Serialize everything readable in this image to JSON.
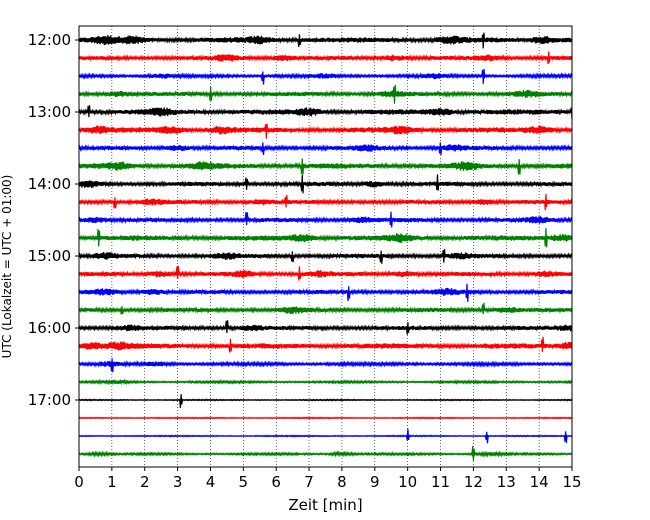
{
  "chart_data": {
    "type": "line",
    "xlabel": "Zeit  [min]",
    "ylabel": "UTC (Lokalzeit = UTC + 01:00)",
    "xlim": [
      0,
      15
    ],
    "x_ticks": [
      0,
      1,
      2,
      3,
      4,
      5,
      6,
      7,
      8,
      9,
      10,
      11,
      12,
      13,
      14,
      15
    ],
    "x_tick_labels": [
      "0",
      "1",
      "2",
      "3",
      "4",
      "5",
      "6",
      "7",
      "8",
      "9",
      "10",
      "11",
      "12",
      "13",
      "14",
      "15"
    ],
    "y_ticks": [
      {
        "label": "12:00",
        "row": 0
      },
      {
        "label": "13:00",
        "row": 4
      },
      {
        "label": "14:00",
        "row": 8
      },
      {
        "label": "15:00",
        "row": 12
      },
      {
        "label": "16:00",
        "row": 16
      },
      {
        "label": "17:00",
        "row": 20
      }
    ],
    "vertical_grid": true,
    "grid_style": "dotted",
    "trace_colors": [
      "#000000",
      "#ff0000",
      "#0000ff",
      "#008000"
    ],
    "traces": [
      {
        "start": "12:00",
        "amplitude": 5,
        "spikes": [
          6.7,
          12.3
        ],
        "bursts": [
          0.8,
          1.6,
          5.5,
          11.3,
          14.1
        ]
      },
      {
        "start": "12:15",
        "amplitude": 4,
        "spikes": [
          14.3
        ],
        "bursts": [
          4.5,
          6.2,
          9.6,
          12.4
        ]
      },
      {
        "start": "12:30",
        "amplitude": 3,
        "spikes": [
          5.6,
          12.3
        ],
        "bursts": [
          2.5,
          7.5,
          10.8
        ]
      },
      {
        "start": "12:45",
        "amplitude": 4,
        "spikes": [
          4.0,
          9.6
        ],
        "bursts": [
          1.2,
          9.5,
          13.6
        ]
      },
      {
        "start": "13:00",
        "amplitude": 5,
        "spikes": [
          0.3,
          15.0
        ],
        "bursts": [
          2.5,
          7.0,
          11.0
        ]
      },
      {
        "start": "13:15",
        "amplitude": 5,
        "spikes": [
          5.7
        ],
        "bursts": [
          0.6,
          2.8,
          4.3,
          9.8,
          14.0
        ]
      },
      {
        "start": "13:30",
        "amplitude": 4,
        "spikes": [
          5.6,
          11.0
        ],
        "bursts": [
          3.0,
          8.8,
          11.4
        ]
      },
      {
        "start": "13:45",
        "amplitude": 5,
        "spikes": [
          6.8,
          13.4
        ],
        "bursts": [
          1.2,
          3.8,
          11.8
        ]
      },
      {
        "start": "14:00",
        "amplitude": 4,
        "spikes": [
          5.1,
          6.8,
          10.9
        ],
        "bursts": [
          0.3,
          9.0
        ]
      },
      {
        "start": "14:15",
        "amplitude": 4,
        "spikes": [
          1.1,
          6.3,
          14.2
        ],
        "bursts": [
          2.2,
          5.5,
          12.3
        ]
      },
      {
        "start": "14:30",
        "amplitude": 4,
        "spikes": [
          5.1,
          9.5
        ],
        "bursts": [
          0.5,
          8.6,
          14.0
        ]
      },
      {
        "start": "14:45",
        "amplitude": 5,
        "spikes": [
          0.6,
          14.2
        ],
        "bursts": [
          6.8,
          9.8,
          14.7
        ]
      },
      {
        "start": "15:00",
        "amplitude": 4,
        "spikes": [
          6.5,
          9.2,
          11.1
        ],
        "bursts": [
          0.8,
          4.5,
          11.6
        ]
      },
      {
        "start": "15:15",
        "amplitude": 4,
        "spikes": [
          3.0,
          6.7
        ],
        "bursts": [
          2.4,
          5.0,
          7.3,
          9.9,
          14.2
        ]
      },
      {
        "start": "15:30",
        "amplitude": 4,
        "spikes": [
          8.2,
          11.8
        ],
        "bursts": [
          0.8,
          2.2,
          11.2
        ]
      },
      {
        "start": "15:45",
        "amplitude": 4,
        "spikes": [
          1.3,
          12.3
        ],
        "bursts": [
          6.5,
          13.0
        ]
      },
      {
        "start": "16:00",
        "amplitude": 4,
        "spikes": [
          4.5,
          10.0
        ],
        "bursts": [
          1.5,
          5.2,
          14.9
        ]
      },
      {
        "start": "16:15",
        "amplitude": 5,
        "spikes": [
          4.6,
          14.1
        ],
        "bursts": [
          0.4,
          1.2,
          14.9
        ]
      },
      {
        "start": "16:30",
        "amplitude": 3,
        "spikes": [
          1.0
        ],
        "bursts": [
          0.9,
          2.4
        ]
      },
      {
        "start": "16:45",
        "amplitude": 2,
        "spikes": [],
        "bursts": [
          1.2
        ]
      },
      {
        "start": "17:00",
        "amplitude": 1,
        "spikes": [
          3.1
        ],
        "bursts": []
      },
      {
        "start": "17:15",
        "amplitude": 1,
        "spikes": [],
        "bursts": []
      },
      {
        "start": "17:30",
        "amplitude": 1,
        "spikes": [
          10.0,
          12.4,
          14.8
        ],
        "bursts": []
      },
      {
        "start": "17:45",
        "amplitude": 2,
        "spikes": [
          12.0
        ],
        "bursts": [
          0.6,
          8.0,
          12.5
        ]
      }
    ]
  }
}
